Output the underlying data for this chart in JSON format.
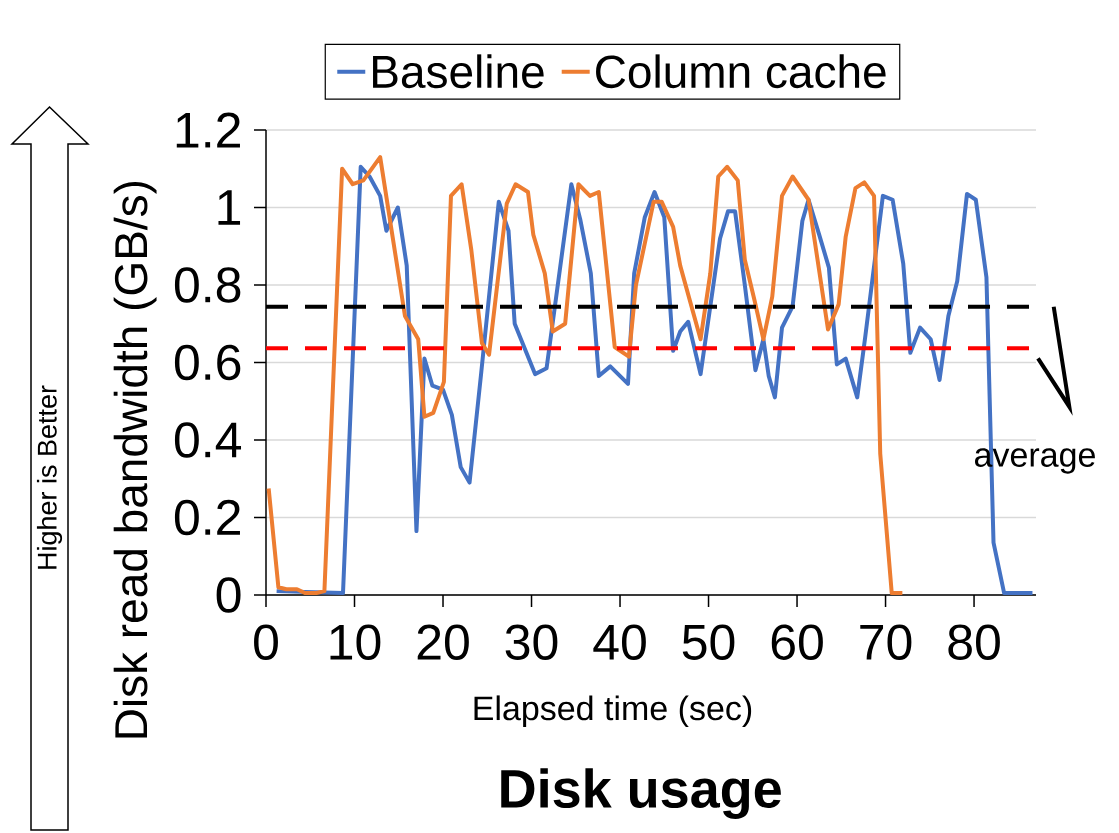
{
  "chart_data": {
    "type": "line",
    "title": "Disk usage",
    "xlabel": "Elapsed time (sec)",
    "ylabel": "Disk read bandwidth (GB/s)",
    "xlim": [
      0,
      87
    ],
    "xticks": [
      0,
      10,
      20,
      30,
      40,
      50,
      60,
      70,
      80
    ],
    "ylim": [
      0,
      1.2
    ],
    "yticks": [
      0,
      0.2,
      0.4,
      0.6,
      0.8,
      1,
      1.2
    ],
    "grid": "y",
    "legend": "top",
    "marker": "none",
    "line_style": "solid",
    "series": [
      {
        "name": "Baseline",
        "color": "#4472c4",
        "x": [
          1.2,
          8.7,
          10.7,
          11.7,
          12.9,
          13.6,
          14.9,
          15.9,
          17.0,
          17.9,
          18.8,
          20.0,
          21.0,
          22.0,
          23.0,
          24.3,
          26.3,
          27.4,
          28.1,
          30.4,
          31.7,
          34.5,
          35.5,
          36.7,
          37.6,
          38.9,
          40.9,
          41.6,
          42.8,
          43.9,
          45.0,
          46.0,
          46.8,
          47.7,
          49.1,
          51.3,
          52.2,
          53.0,
          54.1,
          55.3,
          56.2,
          56.8,
          57.5,
          58.3,
          59.5,
          60.6,
          61.3,
          62.5,
          63.6,
          64.5,
          65.5,
          66.8,
          67.7,
          69.7,
          70.8,
          72.0,
          72.8,
          73.9,
          75.1,
          76.1,
          77.1,
          78.1,
          79.2,
          80.2,
          81.4,
          82.2,
          83.4,
          86.6
        ],
        "values": [
          0.01,
          0.005,
          1.105,
          1.08,
          1.03,
          0.94,
          1.0,
          0.85,
          0.165,
          0.61,
          0.54,
          0.53,
          0.465,
          0.33,
          0.29,
          0.57,
          1.015,
          0.94,
          0.7,
          0.57,
          0.585,
          1.06,
          0.97,
          0.83,
          0.565,
          0.59,
          0.545,
          0.83,
          0.975,
          1.04,
          0.975,
          0.63,
          0.68,
          0.705,
          0.57,
          0.92,
          0.99,
          0.99,
          0.8,
          0.58,
          0.66,
          0.565,
          0.51,
          0.69,
          0.745,
          0.965,
          1.02,
          0.93,
          0.845,
          0.595,
          0.61,
          0.51,
          0.665,
          1.03,
          1.02,
          0.855,
          0.625,
          0.69,
          0.66,
          0.555,
          0.72,
          0.81,
          1.035,
          1.02,
          0.82,
          0.135,
          0.005,
          0.005
        ]
      },
      {
        "name": "Column cache",
        "color": "#ed7d31",
        "x": [
          0.3,
          1.4,
          2.3,
          3.5,
          4.4,
          5.7,
          6.6,
          8.6,
          9.8,
          11.0,
          12.9,
          15.7,
          17.2,
          17.9,
          18.9,
          20.1,
          20.9,
          22.1,
          23.2,
          24.4,
          25.2,
          27.2,
          28.2,
          29.6,
          30.2,
          31.5,
          32.4,
          33.8,
          35.3,
          36.6,
          37.6,
          39.4,
          41.0,
          41.8,
          43.8,
          44.7,
          46.0,
          46.8,
          49.1,
          50.2,
          51.1,
          52.1,
          53.3,
          54.1,
          55.2,
          56.2,
          57.2,
          58.3,
          59.5,
          61.3,
          63.5,
          64.7,
          65.5,
          66.6,
          67.6,
          68.7,
          69.4,
          70.7,
          71.9
        ],
        "values": [
          0.275,
          0.02,
          0.015,
          0.015,
          0.005,
          0.005,
          0.01,
          1.1,
          1.06,
          1.07,
          1.13,
          0.72,
          0.66,
          0.46,
          0.47,
          0.55,
          1.03,
          1.06,
          0.89,
          0.65,
          0.62,
          1.01,
          1.06,
          1.04,
          0.93,
          0.83,
          0.68,
          0.7,
          1.06,
          1.03,
          1.04,
          0.64,
          0.615,
          0.8,
          1.015,
          1.015,
          0.95,
          0.85,
          0.66,
          0.83,
          1.08,
          1.105,
          1.07,
          0.865,
          0.76,
          0.66,
          0.77,
          1.03,
          1.08,
          1.02,
          0.685,
          0.75,
          0.925,
          1.05,
          1.065,
          1.03,
          0.365,
          0.005,
          0.005
        ]
      }
    ],
    "ref_lines": [
      {
        "axis": "y",
        "value": 0.744,
        "color": "#000000",
        "line_style": "dashed"
      },
      {
        "axis": "y",
        "value": 0.637,
        "color": "#ff0000",
        "line_style": "dashed"
      }
    ],
    "annotations": [
      "Higher is Better",
      "average"
    ]
  }
}
